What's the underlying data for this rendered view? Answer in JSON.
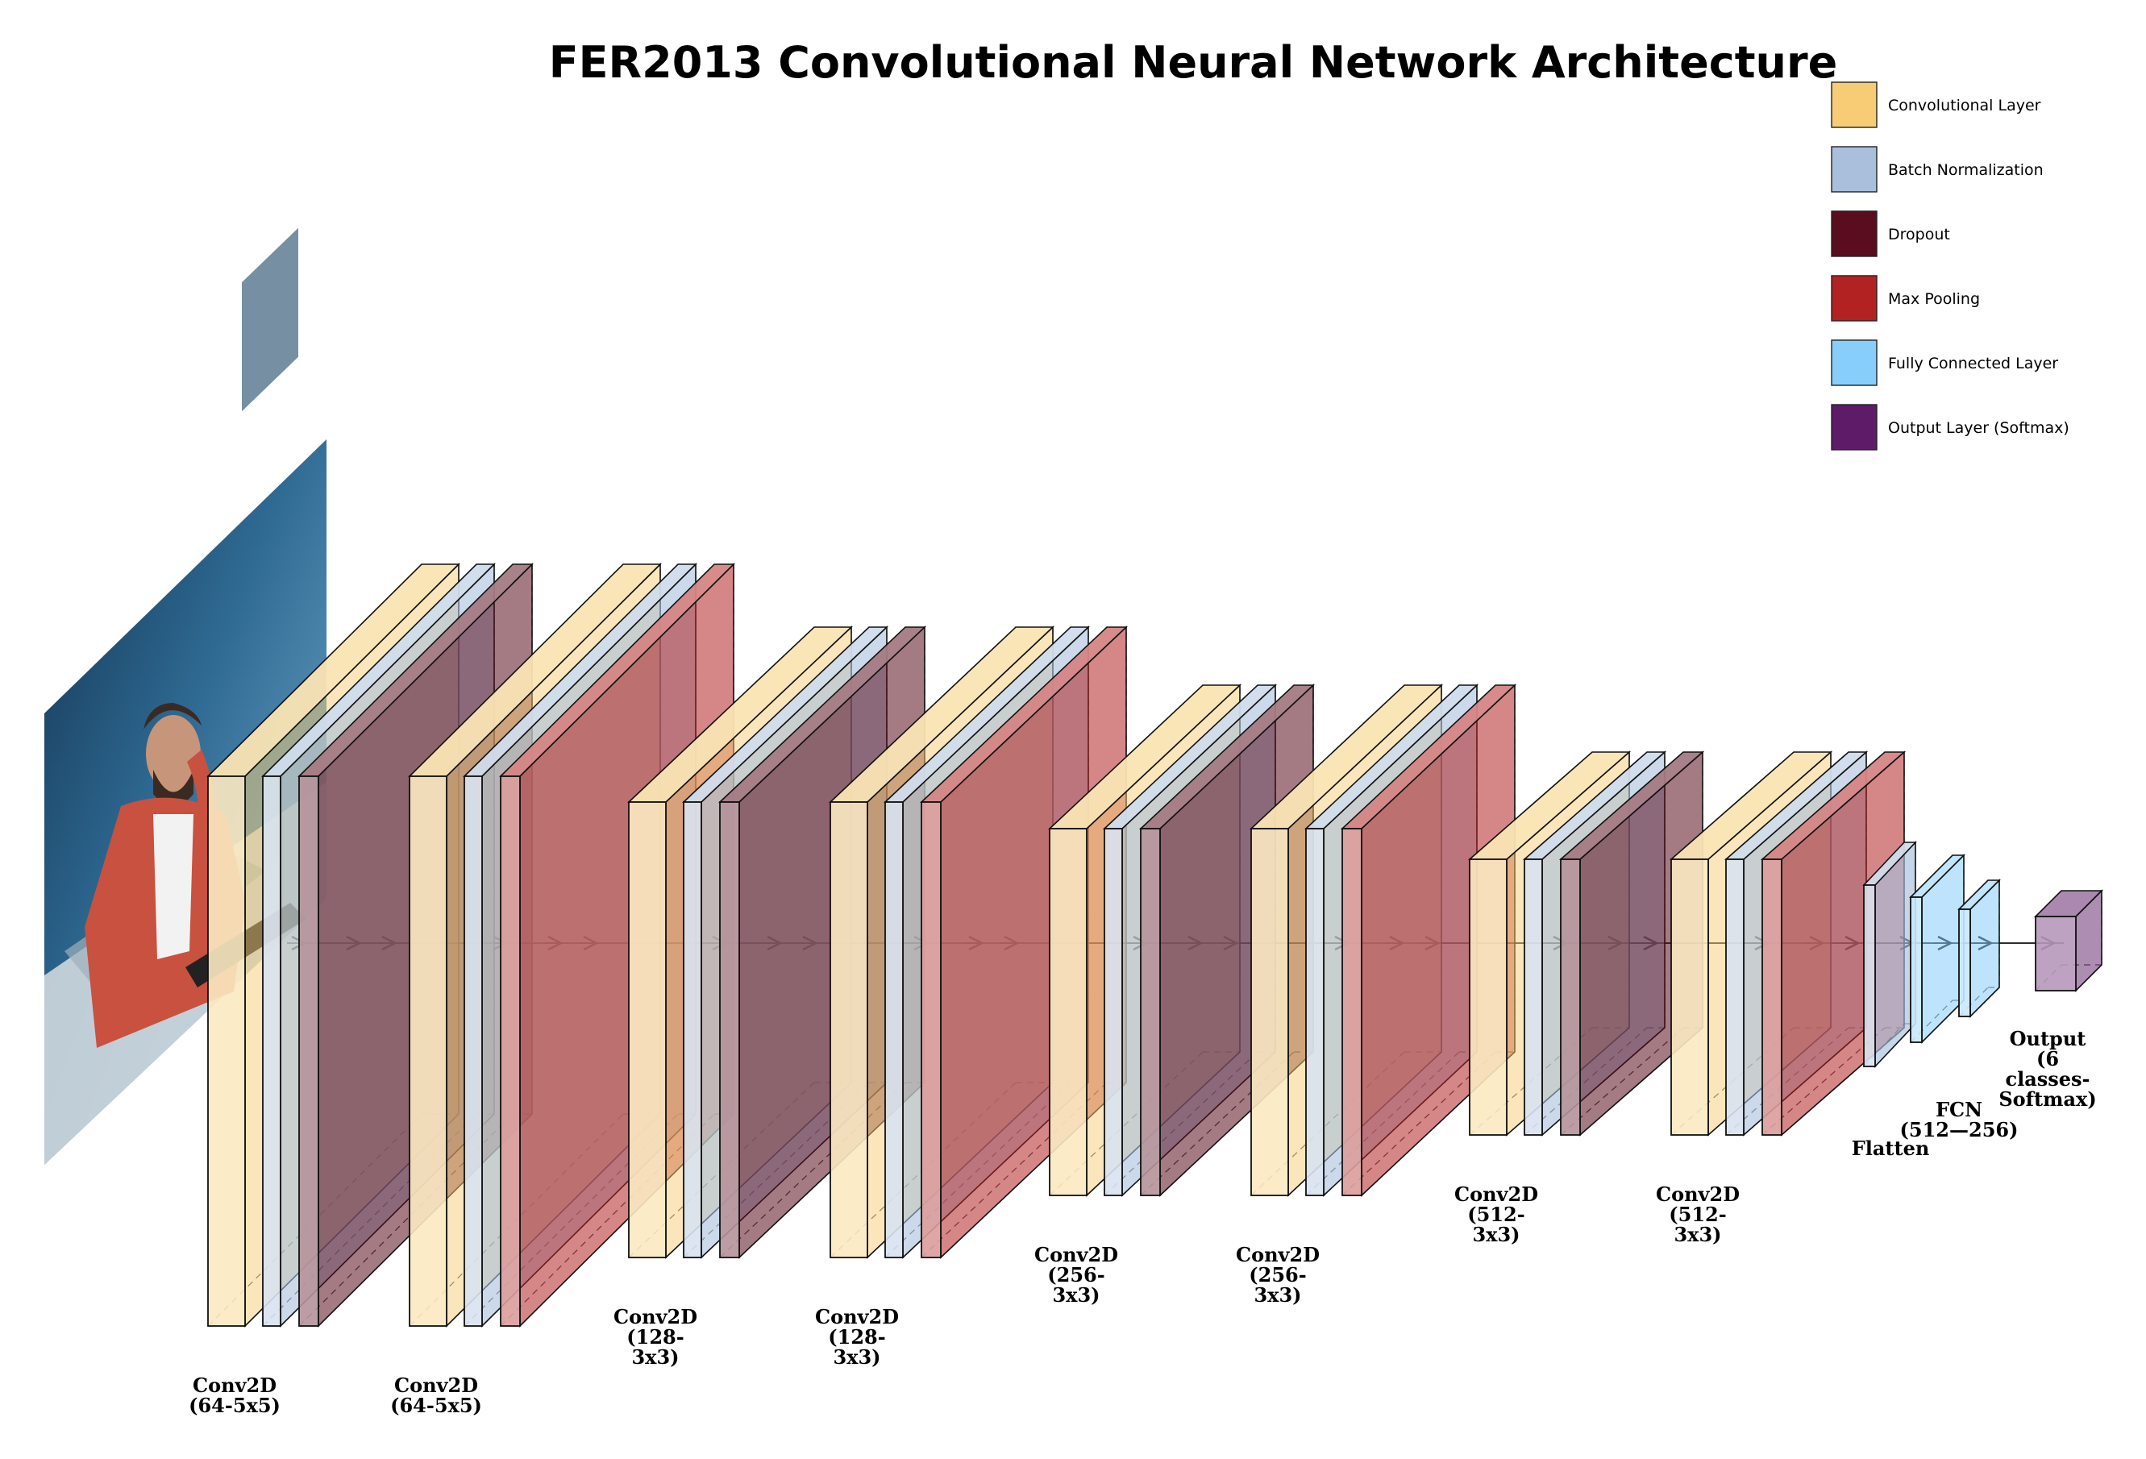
{
  "title": "FER2013 Convolutional Neural Network Architecture",
  "colors": {
    "conv": "#f6cd75",
    "batchnorm": "#a9bfdc",
    "dropout": "#5a0d1e",
    "maxpool": "#b22222",
    "fc": "#87cefa",
    "output": "#5e1b68",
    "edge": "#111111"
  },
  "legend": [
    {
      "key": "conv",
      "label": "Convolutional Layer"
    },
    {
      "key": "batchnorm",
      "label": "Batch Normalization"
    },
    {
      "key": "dropout",
      "label": "Dropout"
    },
    {
      "key": "maxpool",
      "label": "Max Pooling"
    },
    {
      "key": "fc",
      "label": "Fully Connected Layer"
    },
    {
      "key": "output",
      "label": "Output Layer (Softmax)"
    }
  ],
  "input_image": {
    "description_icon": "photo-icon"
  },
  "blocks": [
    {
      "label_lines": [
        "Conv2D",
        "(64-5x5)"
      ],
      "third": "dropout"
    },
    {
      "label_lines": [
        "Conv2D",
        "(64-5x5)"
      ],
      "third": "maxpool"
    },
    {
      "label_lines": [
        "Conv2D",
        "(128-",
        "3x3)"
      ],
      "third": "dropout"
    },
    {
      "label_lines": [
        "Conv2D",
        "(128-",
        "3x3)"
      ],
      "third": "maxpool"
    },
    {
      "label_lines": [
        "Conv2D",
        "(256-",
        "3x3)"
      ],
      "third": "dropout"
    },
    {
      "label_lines": [
        "Conv2D",
        "(256-",
        "3x3)"
      ],
      "third": "maxpool"
    },
    {
      "label_lines": [
        "Conv2D",
        "(512-",
        "3x3)"
      ],
      "third": "dropout"
    },
    {
      "label_lines": [
        "Conv2D",
        "(512-",
        "3x3)"
      ],
      "third": "maxpool"
    }
  ],
  "flatten_label": "Flatten",
  "fcn_label_lines": [
    "FCN",
    "(512—256)"
  ],
  "output_label_lines": [
    "Output",
    "(6",
    "classes-",
    "Softmax)"
  ]
}
